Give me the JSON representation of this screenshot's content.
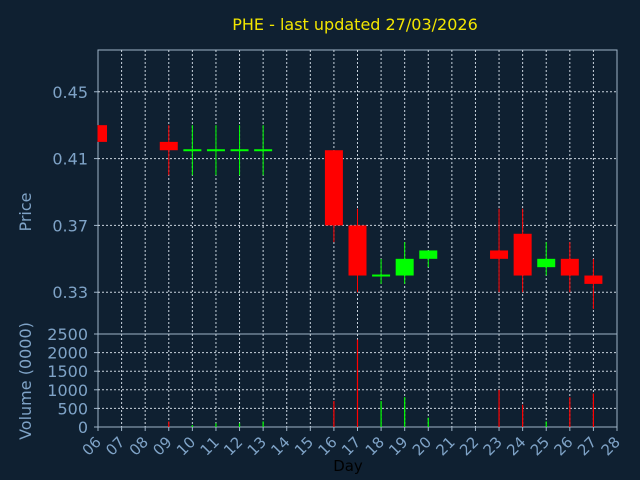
{
  "title": "PHE - last updated 27/03/2026",
  "chart_data": [
    {
      "type": "candlestick",
      "ylabel": "Price",
      "ylim": [
        0.305,
        0.475
      ],
      "yticks": [
        "0.45",
        "0.41",
        "0.37",
        "0.33"
      ],
      "yticks_values": [
        0.45,
        0.41,
        0.37,
        0.33
      ],
      "grid": true,
      "x_labels": [
        "06",
        "07",
        "08",
        "09",
        "10",
        "11",
        "12",
        "13",
        "14",
        "15",
        "16",
        "17",
        "18",
        "19",
        "20",
        "21",
        "22",
        "23",
        "24",
        "25",
        "26",
        "27",
        "28"
      ],
      "candles": [
        {
          "day": "06",
          "open": 0.43,
          "high": 0.43,
          "low": 0.42,
          "close": 0.42
        },
        {
          "day": "09",
          "open": 0.42,
          "high": 0.43,
          "low": 0.4,
          "close": 0.415
        },
        {
          "day": "10",
          "open": 0.415,
          "high": 0.43,
          "low": 0.4,
          "close": 0.415
        },
        {
          "day": "11",
          "open": 0.415,
          "high": 0.43,
          "low": 0.4,
          "close": 0.415
        },
        {
          "day": "12",
          "open": 0.415,
          "high": 0.43,
          "low": 0.4,
          "close": 0.415
        },
        {
          "day": "13",
          "open": 0.415,
          "high": 0.43,
          "low": 0.4,
          "close": 0.415
        },
        {
          "day": "16",
          "open": 0.415,
          "high": 0.415,
          "low": 0.36,
          "close": 0.37
        },
        {
          "day": "17",
          "open": 0.37,
          "high": 0.38,
          "low": 0.33,
          "close": 0.34
        },
        {
          "day": "18",
          "open": 0.34,
          "high": 0.35,
          "low": 0.335,
          "close": 0.34
        },
        {
          "day": "19",
          "open": 0.34,
          "high": 0.36,
          "low": 0.335,
          "close": 0.35
        },
        {
          "day": "20",
          "open": 0.35,
          "high": 0.355,
          "low": 0.345,
          "close": 0.355
        },
        {
          "day": "23",
          "open": 0.355,
          "high": 0.38,
          "low": 0.33,
          "close": 0.35
        },
        {
          "day": "24",
          "open": 0.365,
          "high": 0.38,
          "low": 0.33,
          "close": 0.34
        },
        {
          "day": "25",
          "open": 0.345,
          "high": 0.36,
          "low": 0.34,
          "close": 0.35
        },
        {
          "day": "26",
          "open": 0.35,
          "high": 0.36,
          "low": 0.33,
          "close": 0.34
        },
        {
          "day": "27",
          "open": 0.34,
          "high": 0.35,
          "low": 0.32,
          "close": 0.335
        }
      ],
      "up_color": "#00ff00",
      "down_color": "#ff0000"
    },
    {
      "type": "bar",
      "ylabel": "Volume (0000)",
      "xlabel": "Day",
      "ylim": [
        0,
        2500
      ],
      "yticks": [
        "2500",
        "2000",
        "1500",
        "1000",
        "500",
        "0"
      ],
      "yticks_values": [
        2500,
        2000,
        1500,
        1000,
        500,
        0
      ],
      "grid": true,
      "bars": [
        {
          "day": "09",
          "value": 150,
          "color": "#ff0000"
        },
        {
          "day": "10",
          "value": 50,
          "color": "#00ff00"
        },
        {
          "day": "11",
          "value": 100,
          "color": "#00ff00"
        },
        {
          "day": "12",
          "value": 100,
          "color": "#00ff00"
        },
        {
          "day": "13",
          "value": 150,
          "color": "#00ff00"
        },
        {
          "day": "16",
          "value": 700,
          "color": "#ff0000"
        },
        {
          "day": "17",
          "value": 2350,
          "color": "#ff0000"
        },
        {
          "day": "18",
          "value": 700,
          "color": "#00ff00"
        },
        {
          "day": "19",
          "value": 800,
          "color": "#00ff00"
        },
        {
          "day": "20",
          "value": 250,
          "color": "#00ff00"
        },
        {
          "day": "23",
          "value": 1000,
          "color": "#ff0000"
        },
        {
          "day": "24",
          "value": 600,
          "color": "#ff0000"
        },
        {
          "day": "25",
          "value": 150,
          "color": "#00ff00"
        },
        {
          "day": "26",
          "value": 800,
          "color": "#ff0000"
        },
        {
          "day": "27",
          "value": 900,
          "color": "#ff0000"
        }
      ]
    }
  ]
}
